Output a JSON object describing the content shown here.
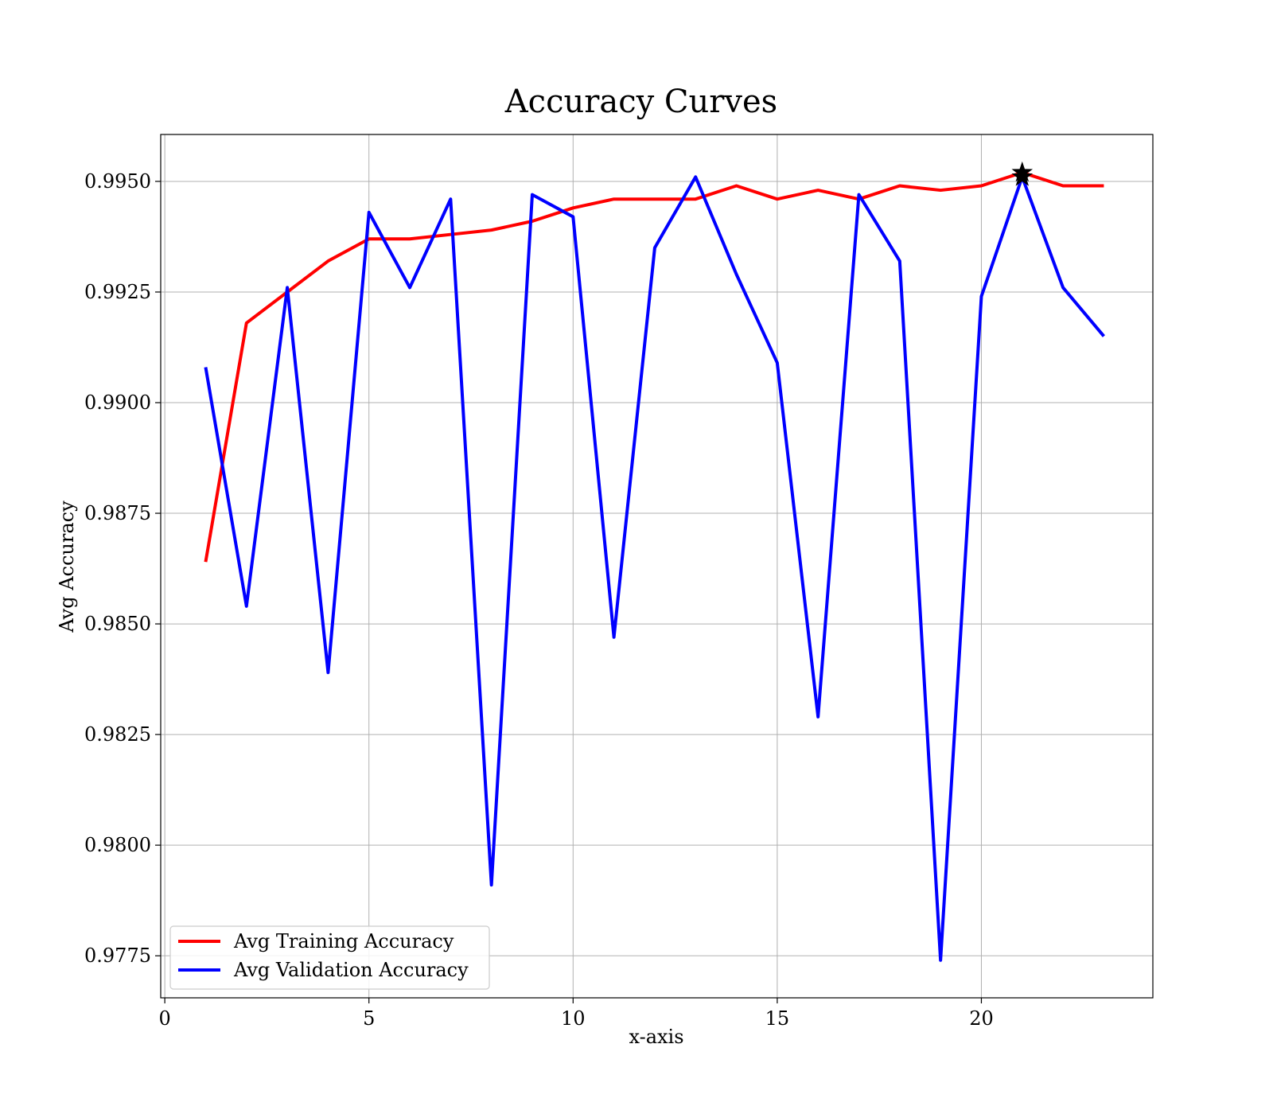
{
  "chart_data": {
    "type": "line",
    "title": "Accuracy Curves",
    "xlabel": "x-axis",
    "ylabel": "Avg Accuracy",
    "xlim": [
      -0.1,
      24.2
    ],
    "ylim": [
      0.97655,
      0.99606
    ],
    "xticks": [
      0,
      5,
      10,
      15,
      20
    ],
    "xtick_labels": [
      "0",
      "5",
      "10",
      "15",
      "20"
    ],
    "yticks": [
      0.9775,
      0.98,
      0.9825,
      0.985,
      0.9875,
      0.99,
      0.9925,
      0.995
    ],
    "ytick_labels": [
      "0.9775",
      "0.9800",
      "0.9825",
      "0.9850",
      "0.9875",
      "0.9900",
      "0.9925",
      "0.9950"
    ],
    "grid": true,
    "legend_position": "lower-left",
    "x": [
      1,
      2,
      3,
      4,
      5,
      6,
      7,
      8,
      9,
      10,
      11,
      12,
      13,
      14,
      15,
      16,
      17,
      18,
      19,
      20,
      21,
      22,
      23
    ],
    "series": [
      {
        "name": "Avg Training Accuracy",
        "color": "#ff0000",
        "values": [
          0.9864,
          0.9918,
          0.9925,
          0.9932,
          0.9937,
          0.9937,
          0.9938,
          0.9939,
          0.9941,
          0.9944,
          0.9946,
          0.9946,
          0.9946,
          0.9949,
          0.9946,
          0.9948,
          0.9946,
          0.9949,
          0.9948,
          0.9949,
          0.9952,
          0.9949,
          0.9949
        ]
      },
      {
        "name": "Avg Validation Accuracy",
        "color": "#0000ff",
        "values": [
          0.9908,
          0.9854,
          0.9926,
          0.9839,
          0.9943,
          0.9926,
          0.9946,
          0.9791,
          0.9947,
          0.9942,
          0.9847,
          0.9935,
          0.9951,
          0.9929,
          0.9909,
          0.9829,
          0.9947,
          0.9932,
          0.9774,
          0.9924,
          0.9951,
          0.9926,
          0.9915
        ]
      }
    ],
    "markers": [
      {
        "x": 21,
        "y": 0.9952,
        "shape": "star",
        "color": "#000000"
      },
      {
        "x": 21,
        "y": 0.9951,
        "shape": "star",
        "color": "#000000"
      }
    ]
  }
}
